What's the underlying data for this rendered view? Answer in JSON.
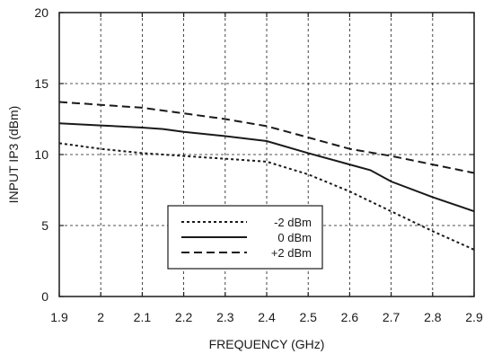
{
  "chart_data": {
    "type": "line",
    "xlabel": "FREQUENCY (GHz)",
    "ylabel": "INPUT IP3 (dBm)",
    "xlim": [
      1.9,
      2.9
    ],
    "ylim": [
      0,
      20
    ],
    "x_ticks": [
      "1.9",
      "2",
      "2.1",
      "2.2",
      "2.3",
      "2.4",
      "2.5",
      "2.6",
      "2.7",
      "2.8",
      "2.9"
    ],
    "y_ticks": [
      "0",
      "5",
      "10",
      "15",
      "20"
    ],
    "grid": true,
    "legend_position": "lower-center",
    "series": [
      {
        "name": "-2 dBm",
        "style": "dotted",
        "x": [
          1.9,
          2.0,
          2.1,
          2.2,
          2.3,
          2.4,
          2.5,
          2.6,
          2.7,
          2.8,
          2.9
        ],
        "y": [
          10.8,
          10.4,
          10.1,
          9.9,
          9.7,
          9.5,
          8.6,
          7.4,
          6.0,
          4.6,
          3.3
        ]
      },
      {
        "name": "0 dBm",
        "style": "solid",
        "x": [
          1.9,
          2.0,
          2.1,
          2.15,
          2.2,
          2.3,
          2.4,
          2.5,
          2.6,
          2.65,
          2.7,
          2.8,
          2.9
        ],
        "y": [
          12.2,
          12.05,
          11.9,
          11.8,
          11.6,
          11.3,
          10.95,
          10.1,
          9.3,
          8.9,
          8.1,
          7.0,
          6.0
        ]
      },
      {
        "name": "+2 dBm",
        "style": "dashed",
        "x": [
          1.9,
          2.0,
          2.1,
          2.2,
          2.3,
          2.4,
          2.5,
          2.6,
          2.7,
          2.8,
          2.9
        ],
        "y": [
          13.7,
          13.5,
          13.3,
          12.9,
          12.5,
          12.0,
          11.2,
          10.4,
          9.9,
          9.3,
          8.7
        ]
      }
    ]
  }
}
